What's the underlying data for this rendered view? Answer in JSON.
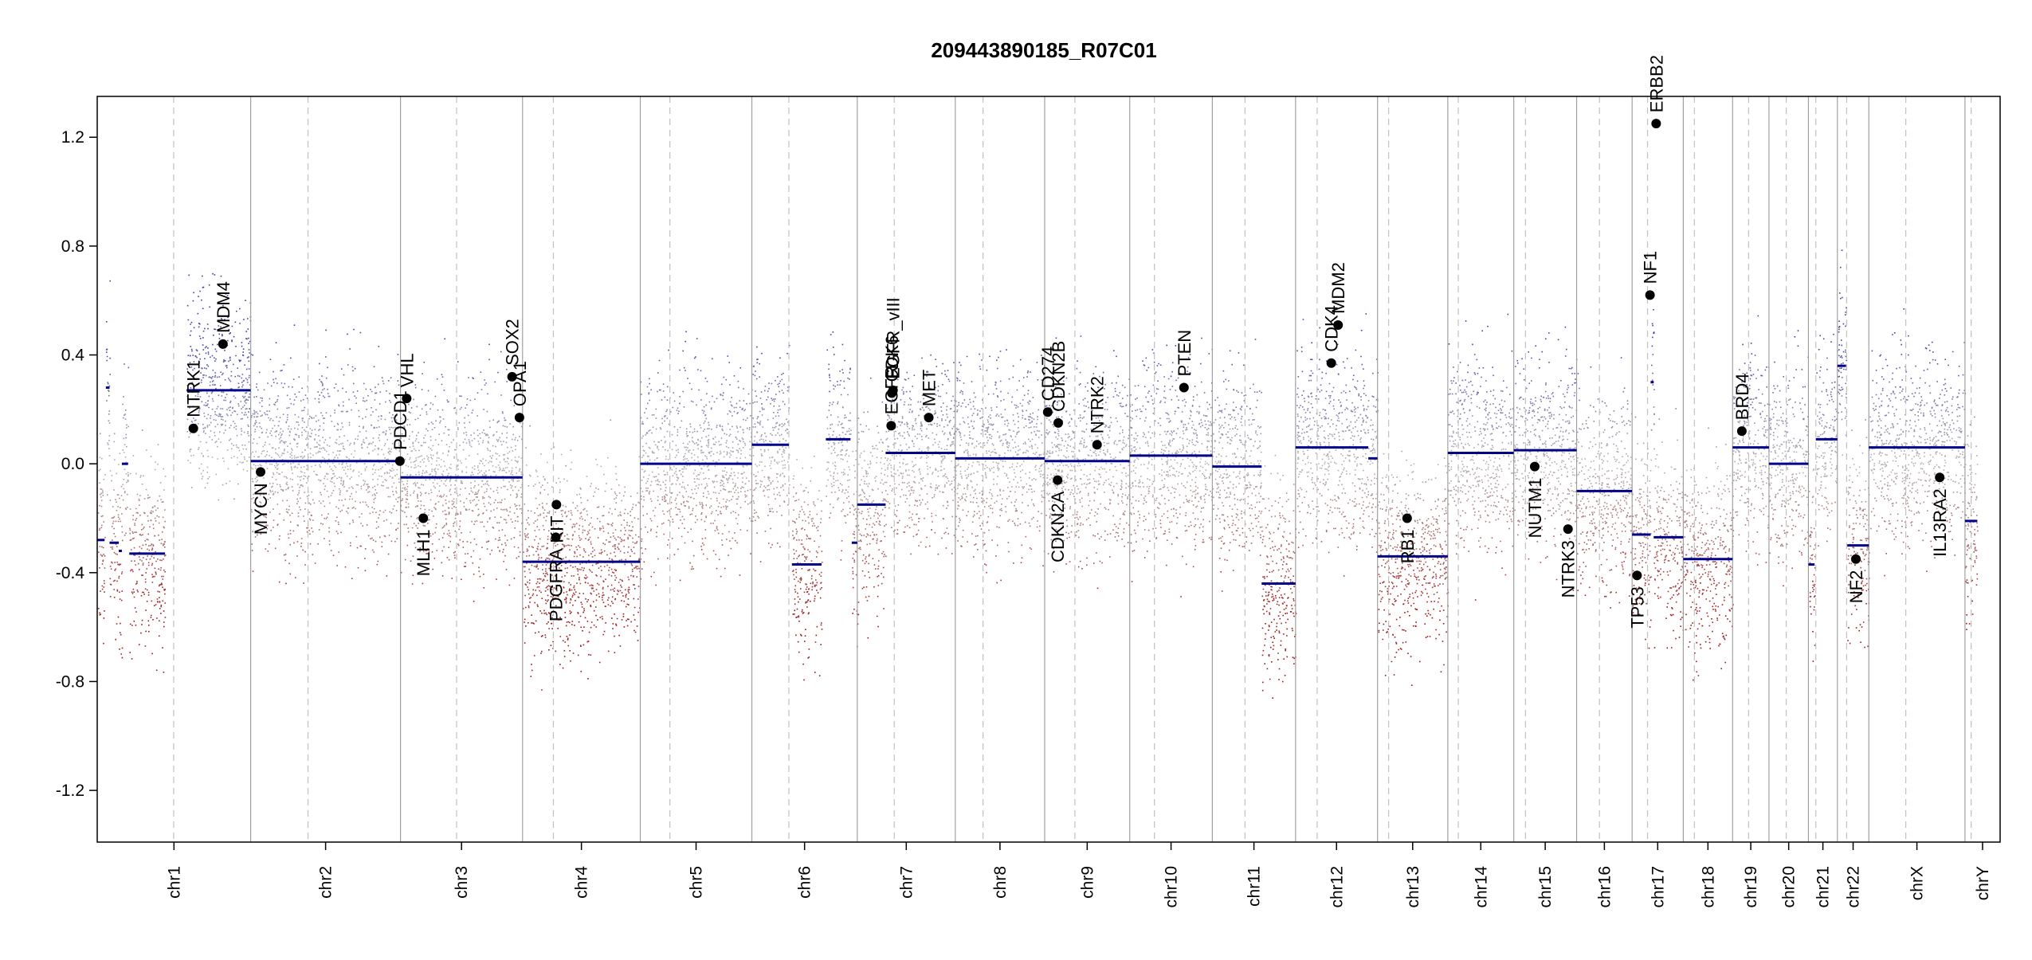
{
  "chart_data": {
    "type": "scatter",
    "title": "209443890185_R07C01",
    "xlabel": "",
    "ylabel": "",
    "ylim": [
      -1.39,
      1.35
    ],
    "yticks": [
      -1.2,
      -0.8,
      -0.4,
      0.0,
      0.4,
      0.8,
      1.2
    ],
    "ytick_labels": [
      "-1.2",
      "-0.8",
      "-0.4",
      "0.0",
      "0.4",
      "0.8",
      "1.2"
    ],
    "x_unit": "Mb (cumulative genome position)",
    "chromosomes": [
      {
        "name": "chr1",
        "length": 249,
        "centromere": 124
      },
      {
        "name": "chr2",
        "length": 243,
        "centromere": 93
      },
      {
        "name": "chr3",
        "length": 198,
        "centromere": 91
      },
      {
        "name": "chr4",
        "length": 191,
        "centromere": 50
      },
      {
        "name": "chr5",
        "length": 181,
        "centromere": 48
      },
      {
        "name": "chr6",
        "length": 171,
        "centromere": 60
      },
      {
        "name": "chr7",
        "length": 159,
        "centromere": 60
      },
      {
        "name": "chr8",
        "length": 145,
        "centromere": 45
      },
      {
        "name": "chr9",
        "length": 138,
        "centromere": 49
      },
      {
        "name": "chr10",
        "length": 134,
        "centromere": 40
      },
      {
        "name": "chr11",
        "length": 135,
        "centromere": 53
      },
      {
        "name": "chr12",
        "length": 133,
        "centromere": 35
      },
      {
        "name": "chr13",
        "length": 114,
        "centromere": 18
      },
      {
        "name": "chr14",
        "length": 107,
        "centromere": 17
      },
      {
        "name": "chr15",
        "length": 102,
        "centromere": 19
      },
      {
        "name": "chr16",
        "length": 90,
        "centromere": 37
      },
      {
        "name": "chr17",
        "length": 83,
        "centromere": 25
      },
      {
        "name": "chr18",
        "length": 80,
        "centromere": 18
      },
      {
        "name": "chr19",
        "length": 59,
        "centromere": 26
      },
      {
        "name": "chr20",
        "length": 64,
        "centromere": 28
      },
      {
        "name": "chr21",
        "length": 47,
        "centromere": 12
      },
      {
        "name": "chr22",
        "length": 51,
        "centromere": 15
      },
      {
        "name": "chrX",
        "length": 156,
        "centromere": 60
      },
      {
        "name": "chrY",
        "length": 57,
        "centromere": 10
      }
    ],
    "segments": [
      {
        "chr": "chr1",
        "start": 0,
        "end": 12,
        "value": -0.28
      },
      {
        "chr": "chr1",
        "start": 14,
        "end": 20,
        "value": 0.28
      },
      {
        "chr": "chr1",
        "start": 20,
        "end": 35,
        "value": -0.29
      },
      {
        "chr": "chr1",
        "start": 35,
        "end": 40,
        "value": -0.32
      },
      {
        "chr": "chr1",
        "start": 40,
        "end": 50,
        "value": 0.0
      },
      {
        "chr": "chr1",
        "start": 52,
        "end": 110,
        "value": -0.33
      },
      {
        "chr": "chr1",
        "start": 145,
        "end": 249,
        "value": 0.27
      },
      {
        "chr": "chr2",
        "start": 0,
        "end": 243,
        "value": 0.01
      },
      {
        "chr": "chr3",
        "start": 0,
        "end": 198,
        "value": -0.05
      },
      {
        "chr": "chr4",
        "start": 0,
        "end": 191,
        "value": -0.36
      },
      {
        "chr": "chr5",
        "start": 0,
        "end": 181,
        "value": 0.0
      },
      {
        "chr": "chr6",
        "start": 0,
        "end": 60,
        "value": 0.07
      },
      {
        "chr": "chr6",
        "start": 65,
        "end": 113,
        "value": -0.37
      },
      {
        "chr": "chr6",
        "start": 120,
        "end": 160,
        "value": 0.09
      },
      {
        "chr": "chr6",
        "start": 162,
        "end": 171,
        "value": -0.29
      },
      {
        "chr": "chr7",
        "start": 0,
        "end": 46,
        "value": -0.15
      },
      {
        "chr": "chr7",
        "start": 46,
        "end": 159,
        "value": 0.04
      },
      {
        "chr": "chr8",
        "start": 0,
        "end": 145,
        "value": 0.02
      },
      {
        "chr": "chr9",
        "start": 0,
        "end": 138,
        "value": 0.01
      },
      {
        "chr": "chr10",
        "start": 0,
        "end": 134,
        "value": 0.03
      },
      {
        "chr": "chr11",
        "start": 0,
        "end": 80,
        "value": -0.01
      },
      {
        "chr": "chr11",
        "start": 80,
        "end": 135,
        "value": -0.44
      },
      {
        "chr": "chr12",
        "start": 0,
        "end": 118,
        "value": 0.06
      },
      {
        "chr": "chr12",
        "start": 118,
        "end": 133,
        "value": 0.02
      },
      {
        "chr": "chr13",
        "start": 0,
        "end": 114,
        "value": -0.34
      },
      {
        "chr": "chr14",
        "start": 0,
        "end": 107,
        "value": 0.04
      },
      {
        "chr": "chr15",
        "start": 0,
        "end": 102,
        "value": 0.05
      },
      {
        "chr": "chr16",
        "start": 0,
        "end": 90,
        "value": -0.1
      },
      {
        "chr": "chr17",
        "start": 0,
        "end": 30,
        "value": -0.26
      },
      {
        "chr": "chr17",
        "start": 30,
        "end": 35,
        "value": 0.3
      },
      {
        "chr": "chr17",
        "start": 35,
        "end": 83,
        "value": -0.27
      },
      {
        "chr": "chr18",
        "start": 0,
        "end": 80,
        "value": -0.35
      },
      {
        "chr": "chr19",
        "start": 0,
        "end": 59,
        "value": 0.06
      },
      {
        "chr": "chr20",
        "start": 0,
        "end": 64,
        "value": 0.0
      },
      {
        "chr": "chr21",
        "start": 0,
        "end": 10,
        "value": -0.37
      },
      {
        "chr": "chr21",
        "start": 12,
        "end": 47,
        "value": 0.09
      },
      {
        "chr": "chr22",
        "start": 0,
        "end": 14,
        "value": 0.36
      },
      {
        "chr": "chr22",
        "start": 16,
        "end": 51,
        "value": -0.3
      },
      {
        "chr": "chrX",
        "start": 0,
        "end": 156,
        "value": 0.06
      },
      {
        "chr": "chrY",
        "start": 0,
        "end": 20,
        "value": -0.21
      }
    ],
    "genes": [
      {
        "name": "NTRK1",
        "chr": "chr1",
        "pos": 156,
        "value": 0.13
      },
      {
        "name": "MDM4",
        "chr": "chr1",
        "pos": 204,
        "value": 0.44
      },
      {
        "name": "MYCN",
        "chr": "chr2",
        "pos": 16,
        "value": -0.03
      },
      {
        "name": "PDCD1",
        "chr": "chr2",
        "pos": 242,
        "value": 0.01
      },
      {
        "name": "VHL",
        "chr": "chr3",
        "pos": 10,
        "value": 0.24
      },
      {
        "name": "MLH1",
        "chr": "chr3",
        "pos": 37,
        "value": -0.2
      },
      {
        "name": "SOX2",
        "chr": "chr3",
        "pos": 181,
        "value": 0.32
      },
      {
        "name": "OPA1",
        "chr": "chr3",
        "pos": 193,
        "value": 0.17
      },
      {
        "name": "PDGFRA",
        "chr": "chr4",
        "pos": 54,
        "value": -0.27
      },
      {
        "name": "KIT",
        "chr": "chr4",
        "pos": 55,
        "value": -0.15
      },
      {
        "name": "EGFR",
        "chr": "chr7",
        "pos": 55,
        "value": 0.14
      },
      {
        "name": "CDK6",
        "chr": "chr7",
        "pos": 56,
        "value": 0.26
      },
      {
        "name": "EGFR_vIII",
        "chr": "chr7",
        "pos": 58,
        "value": 0.27
      },
      {
        "name": "MET",
        "chr": "chr7",
        "pos": 116,
        "value": 0.17
      },
      {
        "name": "CD274",
        "chr": "chr9",
        "pos": 5,
        "value": 0.19
      },
      {
        "name": "CDKN2B",
        "chr": "chr9",
        "pos": 22,
        "value": 0.15
      },
      {
        "name": "CDKN2A",
        "chr": "chr9",
        "pos": 21,
        "value": -0.06
      },
      {
        "name": "NTRK2",
        "chr": "chr9",
        "pos": 85,
        "value": 0.07
      },
      {
        "name": "PTEN",
        "chr": "chr10",
        "pos": 88,
        "value": 0.28
      },
      {
        "name": "CDK4",
        "chr": "chr12",
        "pos": 58,
        "value": 0.37
      },
      {
        "name": "MDM2",
        "chr": "chr12",
        "pos": 69,
        "value": 0.51
      },
      {
        "name": "RB1",
        "chr": "chr13",
        "pos": 48,
        "value": -0.2
      },
      {
        "name": "NUTM1",
        "chr": "chr15",
        "pos": 34,
        "value": -0.01
      },
      {
        "name": "NTRK3",
        "chr": "chr15",
        "pos": 88,
        "value": -0.24
      },
      {
        "name": "TP53",
        "chr": "chr17",
        "pos": 8,
        "value": -0.41
      },
      {
        "name": "NF1",
        "chr": "chr17",
        "pos": 29,
        "value": 0.62
      },
      {
        "name": "ERBB2",
        "chr": "chr17",
        "pos": 39,
        "value": 1.25
      },
      {
        "name": "BRD4",
        "chr": "chr19",
        "pos": 15,
        "value": 0.12
      },
      {
        "name": "NF2",
        "chr": "chr22",
        "pos": 30,
        "value": -0.35
      },
      {
        "name": "IL13RA2",
        "chr": "chrX",
        "pos": 115,
        "value": -0.05
      }
    ],
    "colors": {
      "segment": "#00008B",
      "gain": "#4040a8",
      "loss": "#a01818",
      "neutral": "#b4b4b4",
      "gene_point": "#000000",
      "chr_border": "#a0a0a0",
      "centromere": "#c0c0c0"
    },
    "grid": false,
    "legend": "none"
  }
}
